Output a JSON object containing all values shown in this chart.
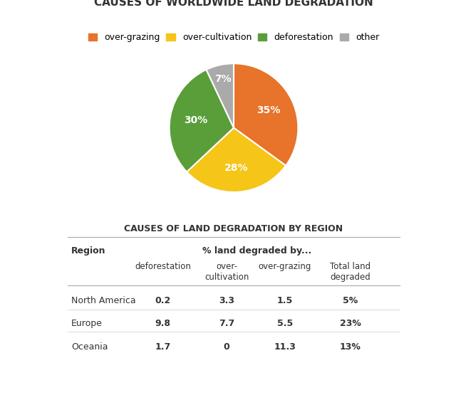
{
  "title_pie": "CAUSES OF WORLDWIDE LAND DEGRADATION",
  "title_table": "CAUSES OF LAND DEGRADATION BY REGION",
  "pie_labels": [
    "over-grazing",
    "over-cultivation",
    "deforestation",
    "other"
  ],
  "pie_values": [
    35,
    28,
    30,
    7
  ],
  "pie_colors": [
    "#E8732A",
    "#F5C518",
    "#5A9E3A",
    "#AAAAAA"
  ],
  "pie_pct_labels": [
    "35%",
    "28%",
    "30%",
    "7%"
  ],
  "table_rows": [
    [
      "North America",
      "0.2",
      "3.3",
      "1.5",
      "5%"
    ],
    [
      "Europe",
      "9.8",
      "7.7",
      "5.5",
      "23%"
    ],
    [
      "Oceania",
      "1.7",
      "0",
      "11.3",
      "13%"
    ]
  ],
  "background_color": "#FFFFFF",
  "text_color": "#333333",
  "title_pie_fontsize": 11,
  "legend_fontsize": 9,
  "table_title_fontsize": 9
}
